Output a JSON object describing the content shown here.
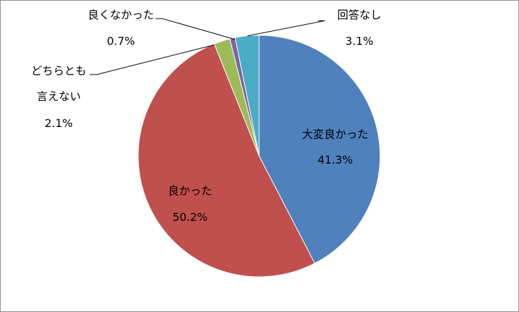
{
  "chart_data": {
    "type": "pie",
    "categories": [
      "大変良かった",
      "良かった",
      "どちらとも言えない",
      "良くなかった",
      "回答なし"
    ],
    "values": [
      41.3,
      50.2,
      2.1,
      0.7,
      3.1
    ],
    "value_labels": [
      "41.3%",
      "50.2%",
      "2.1%",
      "0.7%",
      "3.1%"
    ],
    "colors": [
      "#4f81bd",
      "#c0504d",
      "#9bbb59",
      "#8064a2",
      "#4bacc6"
    ]
  }
}
